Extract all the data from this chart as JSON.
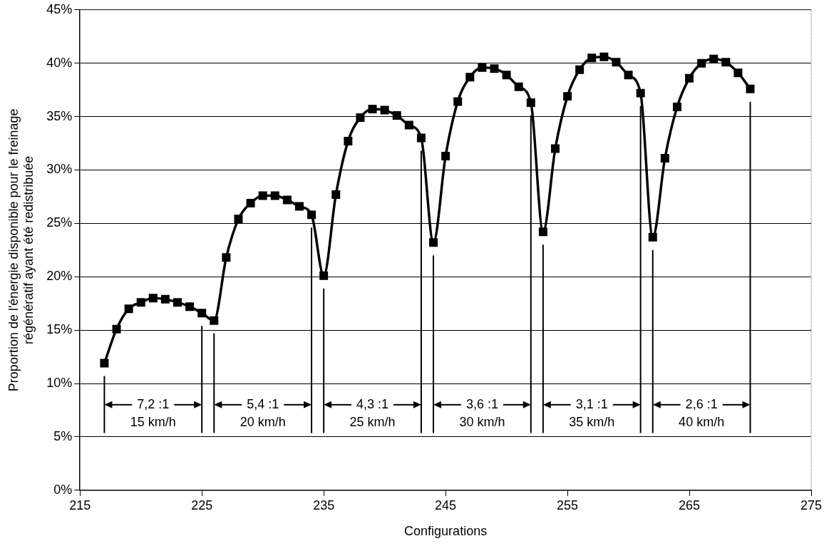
{
  "chart_data": {
    "type": "line",
    "xlabel": "Configurations",
    "ylabel": "Proportion de l'énergie disponible pour le freinage\nrégénératif ayant été redistribuée",
    "x": [
      217,
      218,
      219,
      220,
      221,
      222,
      223,
      224,
      225,
      226,
      227,
      228,
      229,
      230,
      231,
      232,
      233,
      234,
      235,
      236,
      237,
      238,
      239,
      240,
      241,
      242,
      243,
      244,
      245,
      246,
      247,
      248,
      249,
      250,
      251,
      252,
      253,
      254,
      255,
      256,
      257,
      258,
      259,
      260,
      261,
      262,
      263,
      264,
      265,
      266,
      267,
      268,
      269,
      270
    ],
    "series": [
      {
        "color": "#000000",
        "values": [
          11.9,
          15.1,
          17.0,
          17.6,
          18.0,
          17.9,
          17.6,
          17.2,
          16.6,
          15.9,
          21.8,
          25.4,
          26.9,
          27.6,
          27.6,
          27.2,
          26.6,
          25.8,
          20.1,
          27.7,
          32.7,
          34.9,
          35.7,
          35.6,
          35.1,
          34.2,
          33.0,
          23.2,
          31.3,
          36.4,
          38.7,
          39.6,
          39.5,
          38.9,
          37.8,
          36.3,
          24.2,
          32.0,
          36.9,
          39.4,
          40.5,
          40.6,
          40.1,
          38.9,
          37.2,
          23.7,
          31.1,
          35.9,
          38.6,
          40.0,
          40.4,
          40.1,
          39.1,
          37.6
        ]
      }
    ],
    "xlim": [
      215,
      275
    ],
    "xticks": [
      215,
      225,
      235,
      245,
      255,
      265,
      275
    ],
    "ylim": [
      0,
      45
    ],
    "yticks": [
      {
        "value": 0,
        "label": "0%"
      },
      {
        "value": 5,
        "label": "5%"
      },
      {
        "value": 10,
        "label": "10%"
      },
      {
        "value": 15,
        "label": "15%"
      },
      {
        "value": 20,
        "label": "20%"
      },
      {
        "value": 25,
        "label": "25%"
      },
      {
        "value": 30,
        "label": "30%"
      },
      {
        "value": 35,
        "label": "35%"
      },
      {
        "value": 40,
        "label": "40%"
      },
      {
        "value": 45,
        "label": "45%"
      }
    ],
    "ref_lines": [
      {
        "axis": "x",
        "value": 217
      },
      {
        "axis": "x",
        "value": 225
      },
      {
        "axis": "x",
        "value": 226
      },
      {
        "axis": "x",
        "value": 234
      },
      {
        "axis": "x",
        "value": 235
      },
      {
        "axis": "x",
        "value": 243
      },
      {
        "axis": "x",
        "value": 244
      },
      {
        "axis": "x",
        "value": 252
      },
      {
        "axis": "x",
        "value": 253
      },
      {
        "axis": "x",
        "value": 261
      },
      {
        "axis": "x",
        "value": 262
      },
      {
        "axis": "x",
        "value": 270
      }
    ],
    "annotations": [
      "7,2 :1",
      "15 km/h",
      "5,4 :1",
      "20 km/h",
      "4,3 :1",
      "25 km/h",
      "3,6 :1",
      "30 km/h",
      "3,1 :1",
      "35 km/h",
      "2,6 :1",
      "40 km/h"
    ],
    "grid": "y",
    "legend": false,
    "marker": "square",
    "line_style": "solid"
  }
}
